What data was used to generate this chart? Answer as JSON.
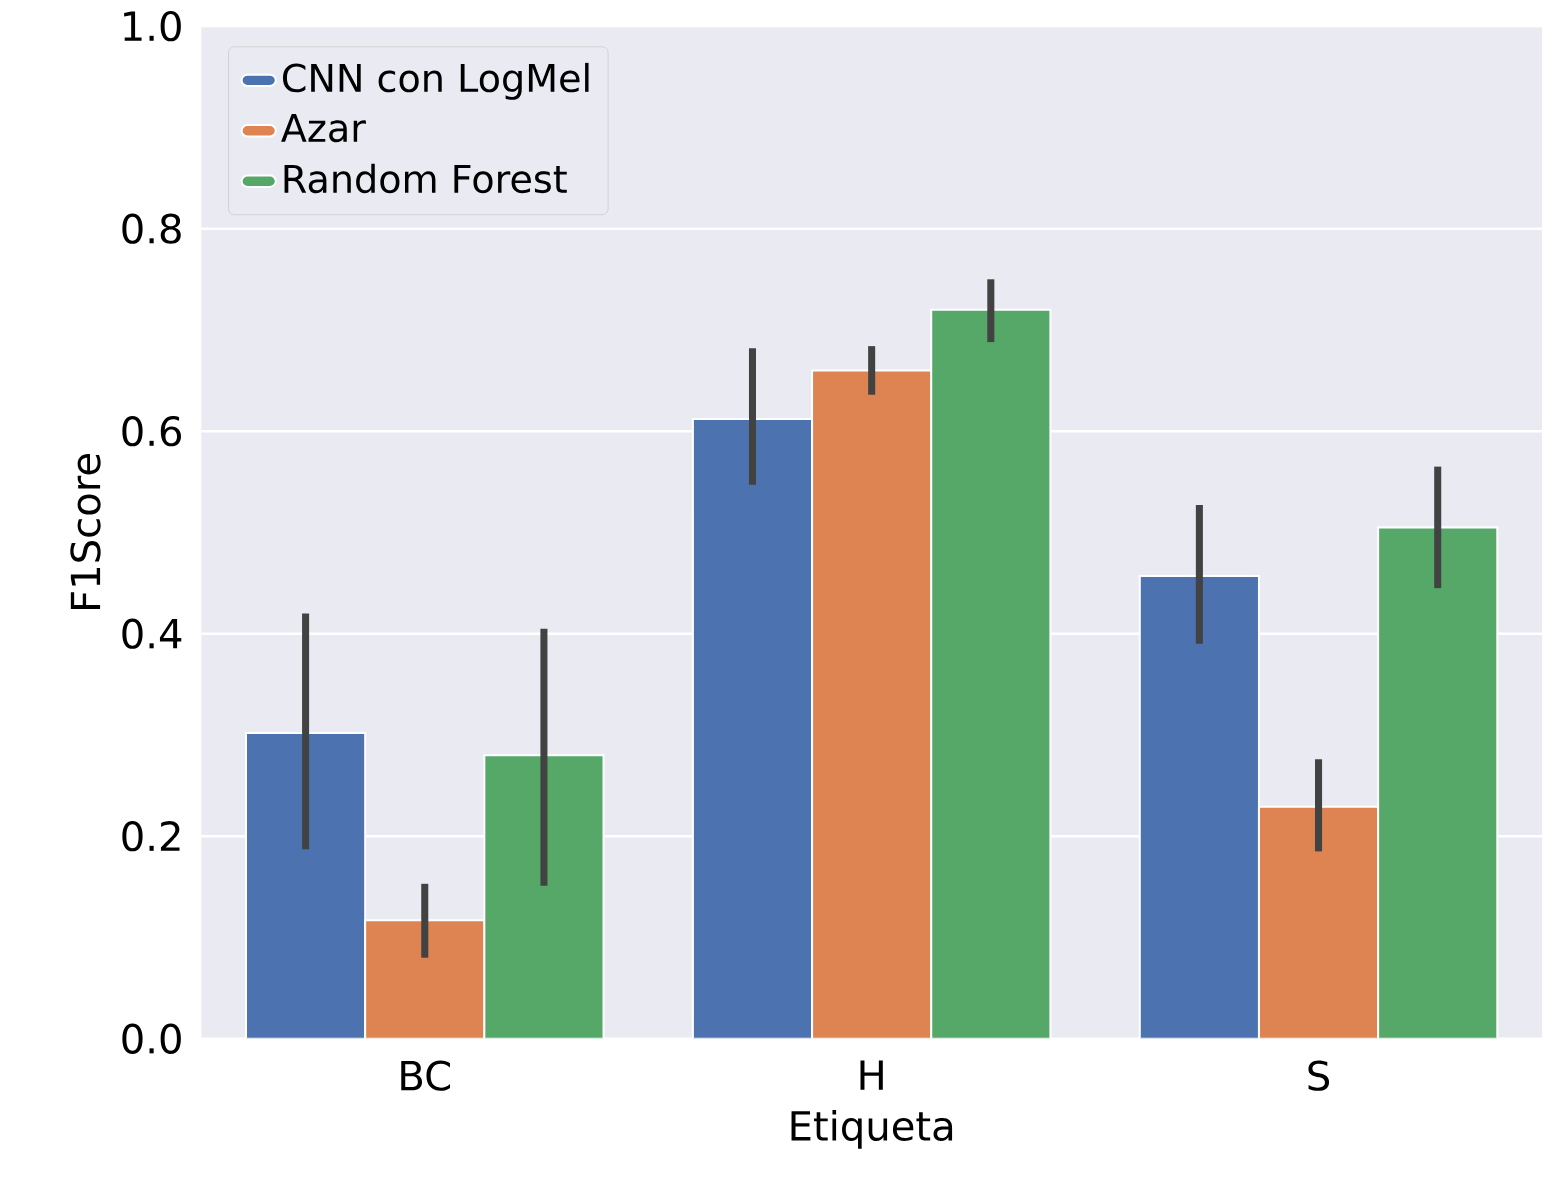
{
  "chart_data": {
    "type": "bar",
    "xlabel": "Etiqueta",
    "ylabel": "F1Score",
    "categories": [
      "BC",
      "H",
      "S"
    ],
    "series": [
      {
        "name": "CNN con LogMel",
        "color": "#4c72b0",
        "values": [
          0.302,
          0.612,
          0.457
        ],
        "errors": [
          [
            0.187,
            0.42
          ],
          [
            0.547,
            0.682
          ],
          [
            0.39,
            0.527
          ]
        ]
      },
      {
        "name": "Azar",
        "color": "#dd8452",
        "values": [
          0.117,
          0.66,
          0.229
        ],
        "errors": [
          [
            0.08,
            0.153
          ],
          [
            0.636,
            0.684
          ],
          [
            0.185,
            0.276
          ]
        ]
      },
      {
        "name": "Random Forest",
        "color": "#55a868",
        "values": [
          0.28,
          0.72,
          0.505
        ],
        "errors": [
          [
            0.151,
            0.405
          ],
          [
            0.688,
            0.75
          ],
          [
            0.445,
            0.565
          ]
        ]
      }
    ],
    "ylim": [
      0,
      1.0
    ],
    "yticks": [
      {
        "value": 0,
        "label": "0.0"
      },
      {
        "value": 0.2,
        "label": "0.2"
      },
      {
        "value": 0.4,
        "label": "0.4"
      },
      {
        "value": 0.6,
        "label": "0.6"
      },
      {
        "value": 0.8,
        "label": "0.8"
      },
      {
        "value": 1.0,
        "label": "1.0"
      }
    ],
    "grid": "y",
    "legend": "top left"
  }
}
